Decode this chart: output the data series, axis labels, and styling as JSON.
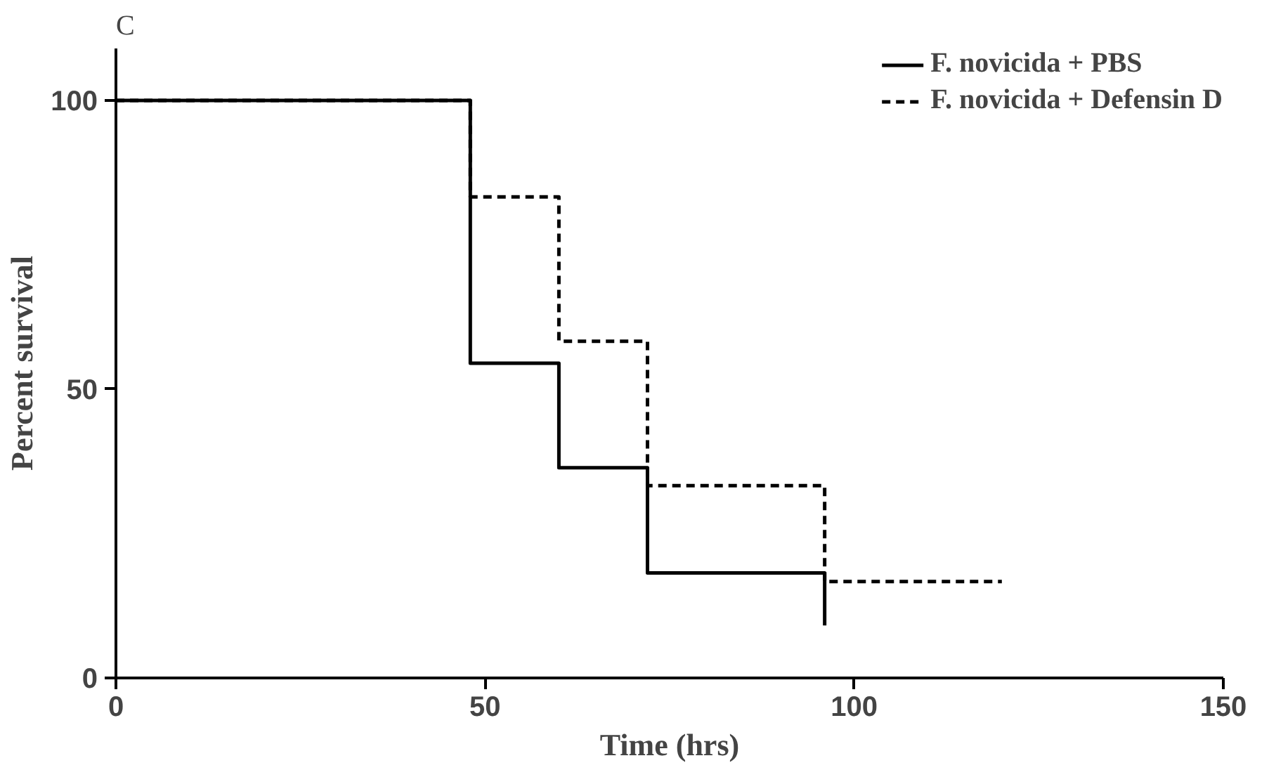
{
  "chart_data": {
    "type": "step",
    "title": "C",
    "xlabel": "Time (hrs)",
    "ylabel": "Percent survival",
    "xlim": [
      0,
      150
    ],
    "ylim": [
      0,
      109
    ],
    "xticks": [
      0,
      50,
      100,
      150
    ],
    "yticks": [
      0,
      50,
      100
    ],
    "series": [
      {
        "name": "F. novicida + PBS",
        "color": "#000000",
        "line_style": "solid",
        "x": [
          0,
          48,
          60,
          72,
          96
        ],
        "values": [
          100,
          54.5,
          36.4,
          18.2,
          9.1
        ]
      },
      {
        "name": "F. novicida + Defensin D",
        "color": "#000000",
        "line_style": "dashed",
        "x": [
          0,
          48,
          60,
          72,
          96,
          120
        ],
        "values": [
          100,
          83.3,
          58.3,
          33.3,
          16.7,
          16.7
        ]
      }
    ],
    "grid": false,
    "legend": "top right",
    "marker": "none"
  }
}
